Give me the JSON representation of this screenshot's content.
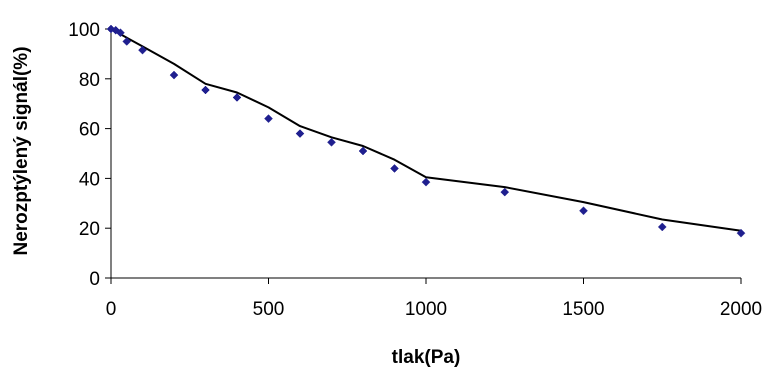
{
  "chart_data": {
    "type": "scatter",
    "title": "",
    "xlabel": "tlak(Pa)",
    "ylabel": "Nerozptýlený signál(%)",
    "xlim": [
      0,
      2000
    ],
    "ylim": [
      0,
      100
    ],
    "x_ticks": [
      0,
      500,
      1000,
      1500,
      2000
    ],
    "y_ticks": [
      0,
      20,
      40,
      60,
      80,
      100
    ],
    "x_tick_labels": [
      "0",
      "500",
      "1000",
      "1500",
      "2000"
    ],
    "y_tick_labels": [
      "0",
      "20",
      "40",
      "60",
      "80",
      "100"
    ],
    "grid": false,
    "legend": "none",
    "series": [
      {
        "kind": "markers",
        "marker": "diamond",
        "color": "#1f1f8f",
        "x": [
          0,
          15,
          30,
          50,
          100,
          200,
          300,
          400,
          500,
          600,
          700,
          800,
          900,
          1000,
          1250,
          1500,
          1750,
          2000
        ],
        "y": [
          100,
          99.5,
          98.5,
          95,
          91.5,
          81.5,
          75.5,
          72.5,
          64,
          58,
          54.5,
          51,
          44,
          38.5,
          34.5,
          27,
          20.5,
          18
        ]
      },
      {
        "kind": "line",
        "color": "#000000",
        "x": [
          0,
          100,
          200,
          300,
          400,
          500,
          600,
          700,
          800,
          900,
          1000,
          1250,
          1500,
          1750,
          2000
        ],
        "y": [
          100,
          93,
          86,
          78,
          74.5,
          68.5,
          61,
          56.5,
          53,
          47.5,
          40.5,
          36.5,
          30.5,
          23.5,
          19
        ]
      }
    ]
  }
}
